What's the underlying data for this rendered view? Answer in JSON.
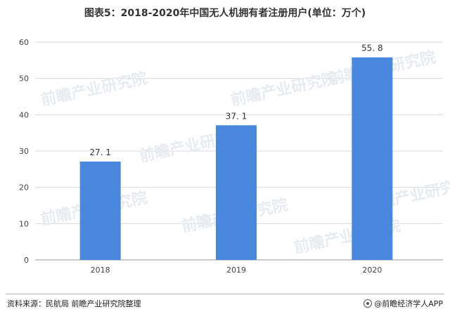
{
  "title": "图表5：2018-2020年中国无人机拥有者注册用户(单位：万个)",
  "source": "资料来源：民航局 前瞻产业研究院整理",
  "brand": "@前瞻经济学人APP",
  "watermark": "前瞻产业研究院",
  "colors": {
    "bar": "#4a88e0",
    "grid": "#d9d9d9",
    "axis": "#999999"
  },
  "chart_data": {
    "type": "bar",
    "title": "图表5：2018-2020年中国无人机拥有者注册用户(单位：万个)",
    "categories": [
      "2018",
      "2019",
      "2020"
    ],
    "values": [
      27.1,
      37.1,
      55.8
    ],
    "value_labels": [
      "27. 1",
      "37. 1",
      "55. 8"
    ],
    "yticks": [
      0,
      10,
      20,
      30,
      40,
      50,
      60
    ],
    "ylim": [
      0,
      60
    ],
    "xlabel": "",
    "ylabel": "",
    "grid": true,
    "legend": "none"
  }
}
